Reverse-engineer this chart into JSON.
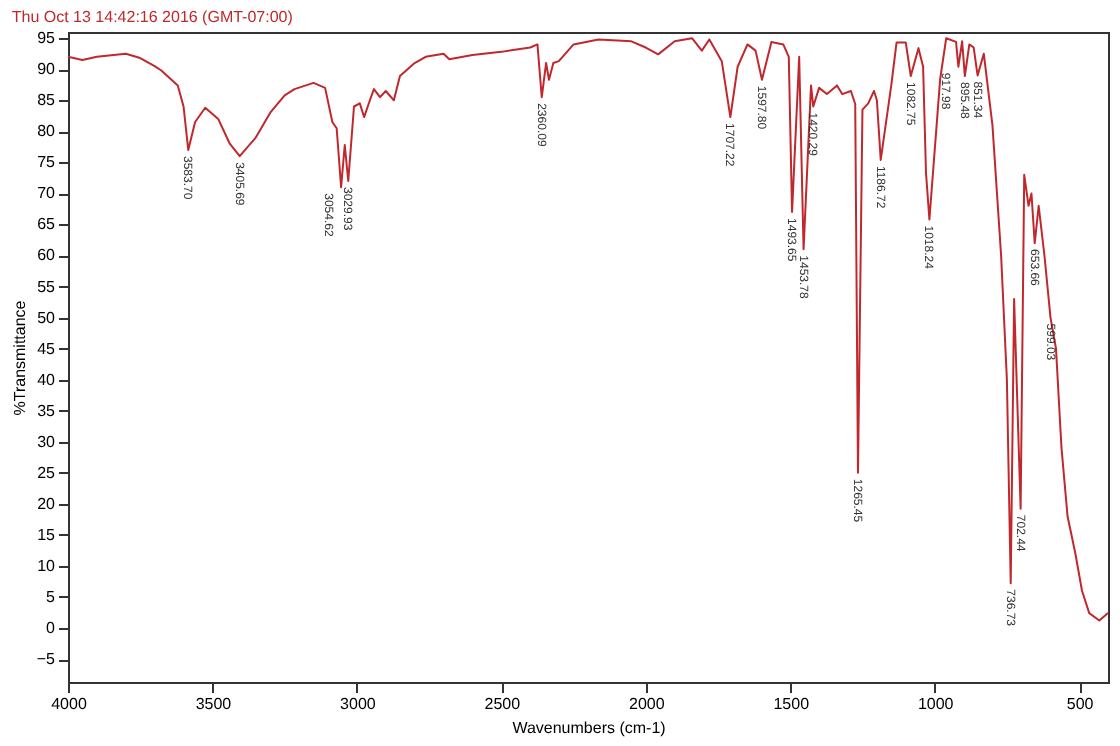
{
  "chart_data": {
    "type": "line",
    "title": "Thu Oct 13 14:42:16 2016 (GMT-07:00)",
    "xlabel": "Wavenumbers (cm-1)",
    "ylabel": "%Transmittance",
    "xlim": [
      4000,
      400
    ],
    "xticks": [
      4000,
      3500,
      3000,
      2500,
      2000,
      1500,
      1000,
      500
    ],
    "ylim": [
      -8.7,
      96
    ],
    "yticks": [
      -5,
      0,
      5,
      10,
      15,
      20,
      25,
      30,
      35,
      40,
      45,
      50,
      55,
      60,
      65,
      70,
      75,
      80,
      85,
      90,
      95
    ],
    "grid": false,
    "marker": "none",
    "line_style": "solid",
    "series": [
      {
        "color": "#c0282d",
        "x": [
          4000,
          3950,
          3900,
          3800,
          3750,
          3700,
          3677,
          3620,
          3600,
          3583.7,
          3560,
          3525,
          3480,
          3440,
          3405.69,
          3350,
          3300,
          3250,
          3216,
          3150,
          3110,
          3085,
          3070,
          3054.62,
          3042,
          3029.93,
          3010,
          2990,
          2975,
          2955,
          2941,
          2920,
          2900,
          2872,
          2851,
          2800,
          2762,
          2700,
          2680,
          2600,
          2500,
          2400,
          2375,
          2360.09,
          2345,
          2335,
          2320,
          2301,
          2250,
          2164,
          2050,
          2000,
          1957,
          1900,
          1840,
          1806,
          1780,
          1737,
          1707.22,
          1682,
          1648,
          1620,
          1597.8,
          1565,
          1524,
          1505,
          1493.65,
          1469,
          1453.78,
          1428,
          1420.29,
          1400,
          1373,
          1338,
          1320,
          1290,
          1275,
          1265.45,
          1250,
          1230,
          1210,
          1200,
          1186.72,
          1150,
          1132,
          1100,
          1082.75,
          1056,
          1040,
          1030,
          1018.24,
          981,
          960,
          926,
          917.98,
          905,
          895.48,
          880,
          865,
          851.34,
          830,
          800,
          770,
          750,
          736.73,
          725,
          702.44,
          690,
          675,
          665,
          653.66,
          640,
          620,
          599.03,
          580,
          561,
          540,
          513,
          490,
          465,
          430,
          400
        ],
        "values": [
          92,
          91.5,
          92,
          92.5,
          91.8,
          90.5,
          89.8,
          87.4,
          84,
          77,
          81.5,
          83.8,
          82,
          78,
          76,
          79,
          83,
          85.8,
          86.8,
          87.8,
          87,
          81.5,
          80.5,
          71,
          77.8,
          72,
          84,
          84.5,
          82.3,
          85,
          86.8,
          85.5,
          86.5,
          85,
          88.9,
          91,
          92,
          92.5,
          91.6,
          92.3,
          92.8,
          93.5,
          94,
          85.5,
          91,
          88.3,
          91,
          91.3,
          94,
          94.8,
          94.5,
          93.5,
          92.4,
          94.5,
          95,
          93,
          94.8,
          91.3,
          82.3,
          90.4,
          94,
          93,
          88.3,
          94.4,
          94,
          92,
          67,
          92,
          61,
          87.4,
          84,
          87,
          86,
          87.4,
          86,
          86.5,
          84.4,
          25,
          83.5,
          84.5,
          86.5,
          85,
          75.4,
          87.5,
          94.3,
          94.3,
          88.9,
          93.4,
          90.4,
          73.3,
          65.8,
          88.4,
          95,
          94.4,
          90.4,
          94.5,
          88.9,
          94,
          93.5,
          89,
          92.5,
          81,
          60,
          40,
          7.2,
          53,
          19.2,
          73,
          68,
          70,
          62,
          68,
          60,
          50,
          45,
          29,
          18,
          12,
          6,
          2.4,
          1.2,
          2.4
        ]
      }
    ],
    "annotations": [
      {
        "text": "3583.70",
        "x": 3583.7,
        "y": 77
      },
      {
        "text": "3405.69",
        "x": 3405.69,
        "y": 76
      },
      {
        "text": "3054.62",
        "x": 3054.62,
        "y": 71
      },
      {
        "text": "3029.93",
        "x": 3029.93,
        "y": 72
      },
      {
        "text": "2360.09",
        "x": 2360.09,
        "y": 85.5
      },
      {
        "text": "1707.22",
        "x": 1707.22,
        "y": 82.3
      },
      {
        "text": "1597.80",
        "x": 1597.8,
        "y": 88.3
      },
      {
        "text": "1493.65",
        "x": 1493.65,
        "y": 67
      },
      {
        "text": "1453.78",
        "x": 1453.78,
        "y": 61
      },
      {
        "text": "1420.29",
        "x": 1420.29,
        "y": 84
      },
      {
        "text": "1265.45",
        "x": 1265.45,
        "y": 25
      },
      {
        "text": "1186.72",
        "x": 1186.72,
        "y": 75.4
      },
      {
        "text": "1082.75",
        "x": 1082.75,
        "y": 88.9
      },
      {
        "text": "1018.24",
        "x": 1018.24,
        "y": 65.8
      },
      {
        "text": "917.98",
        "x": 917.98,
        "y": 90.4
      },
      {
        "text": "895.48",
        "x": 895.48,
        "y": 88.9
      },
      {
        "text": "851.34",
        "x": 851.34,
        "y": 89
      },
      {
        "text": "736.73",
        "x": 736.73,
        "y": 7.2
      },
      {
        "text": "702.44",
        "x": 702.44,
        "y": 19.2
      },
      {
        "text": "653.66",
        "x": 653.66,
        "y": 62
      },
      {
        "text": "599.03",
        "x": 599.03,
        "y": 50
      }
    ]
  }
}
